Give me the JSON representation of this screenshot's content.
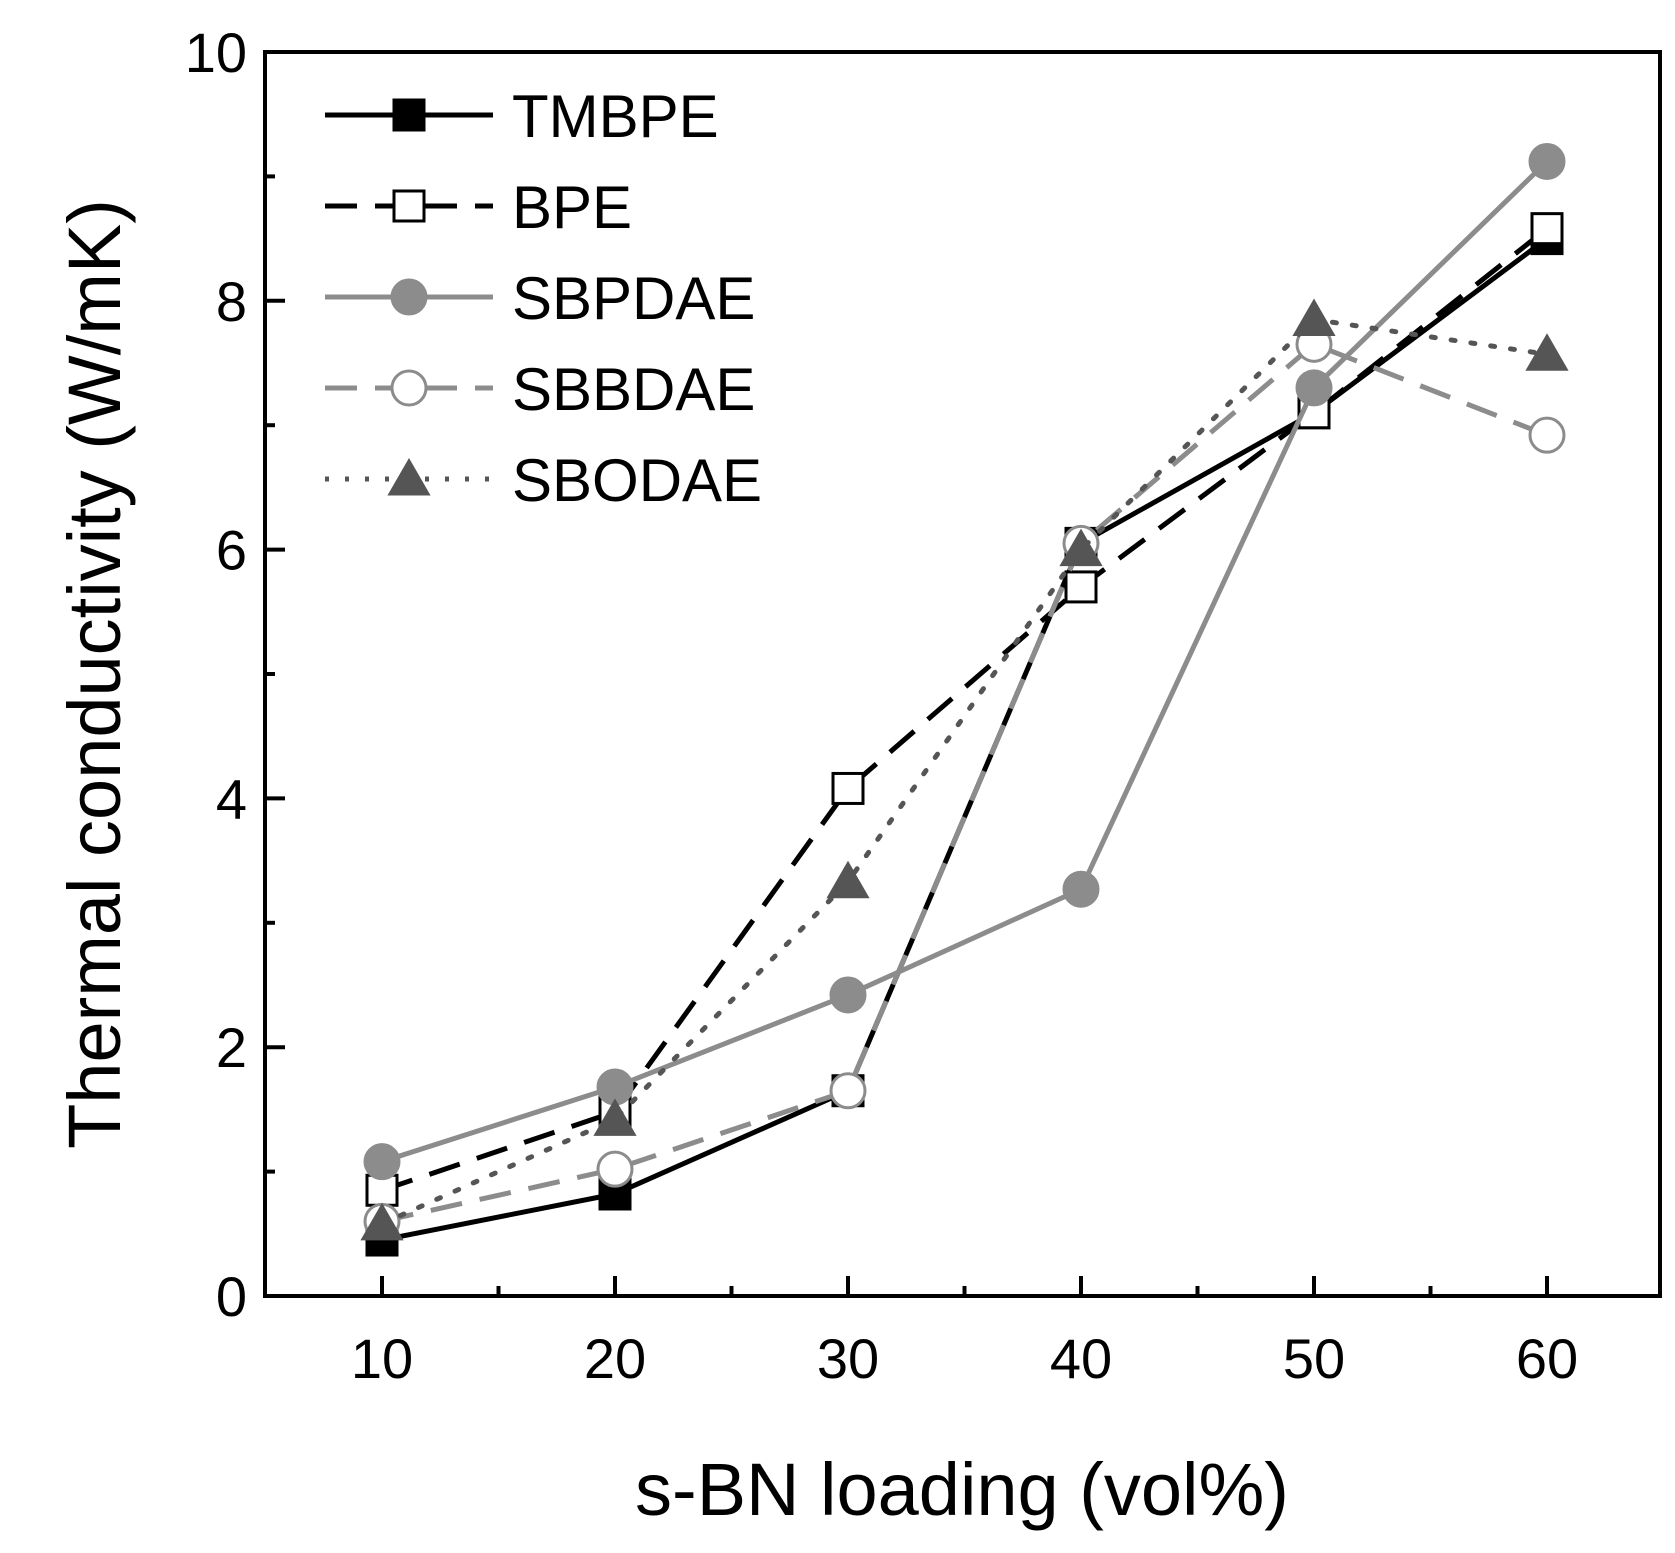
{
  "chart_data": {
    "type": "line",
    "title": "",
    "xlabel": "s-BN loading (vol%)",
    "ylabel": "Thermal conductivity (W/mK)",
    "x": [
      10,
      20,
      30,
      40,
      50,
      60
    ],
    "xlim": [
      5,
      65
    ],
    "ylim": [
      0,
      10
    ],
    "xticks": [
      10,
      20,
      30,
      40,
      50,
      60
    ],
    "yticks": [
      0,
      2,
      4,
      6,
      8,
      10
    ],
    "grid": false,
    "legend_position": "top-left",
    "series": [
      {
        "name": "TMBPE",
        "values": [
          0.45,
          0.82,
          1.65,
          6.05,
          7.1,
          8.5
        ],
        "line": "solid",
        "marker": "square",
        "filled": true,
        "color": "#000000"
      },
      {
        "name": "BPE",
        "values": [
          0.85,
          1.48,
          4.08,
          5.7,
          7.1,
          8.58
        ],
        "line": "dashed",
        "marker": "square",
        "filled": false,
        "color": "#000000"
      },
      {
        "name": "SBPDAE",
        "values": [
          1.08,
          1.68,
          2.42,
          3.27,
          7.3,
          9.12
        ],
        "line": "solid",
        "marker": "circle",
        "filled": true,
        "color": "#8c8c8c"
      },
      {
        "name": "SBBDAE",
        "values": [
          0.6,
          1.02,
          1.65,
          6.05,
          7.65,
          6.92
        ],
        "line": "dashed",
        "marker": "circle",
        "filled": false,
        "color": "#8c8c8c"
      },
      {
        "name": "SBODAE",
        "values": [
          0.58,
          1.42,
          3.33,
          6.0,
          7.85,
          7.57
        ],
        "line": "dotted",
        "marker": "triangle",
        "filled": true,
        "color": "#555555"
      }
    ]
  }
}
